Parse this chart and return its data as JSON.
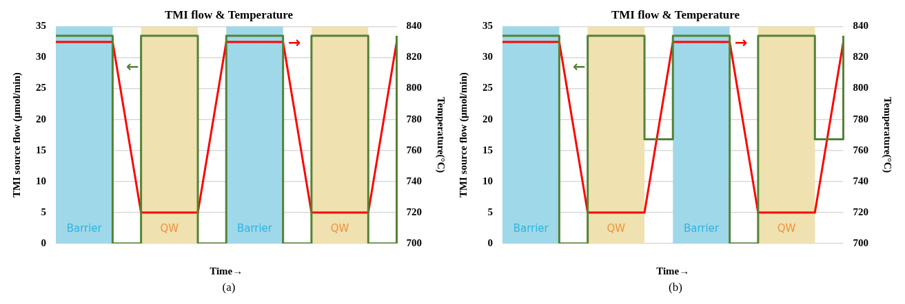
{
  "chart_data": [
    {
      "type": "line",
      "title": "TMI flow & Temperature",
      "xlabel": "Time→",
      "ylabel": "TMI source flow (μmol/min)",
      "y2label": "Temperature(°C)",
      "categories": [
        null,
        null,
        null,
        null,
        null,
        null,
        null,
        null,
        null,
        null,
        null,
        null,
        null
      ],
      "ylim": [
        0,
        35
      ],
      "yticks": [
        0,
        5,
        10,
        15,
        20,
        25,
        30,
        35
      ],
      "y2lim": [
        700,
        840
      ],
      "y2ticks": [
        700,
        720,
        740,
        760,
        780,
        800,
        820,
        840
      ],
      "grid": "y",
      "series": [
        {
          "type": "step",
          "color": "#548235",
          "values": [
            33.5,
            33.5,
            0,
            33.5,
            33.5,
            0,
            33.5,
            33.5,
            0,
            33.5,
            33.5,
            0,
            33.5
          ]
        },
        {
          "axis": "y2",
          "color": "#ff0000",
          "values": [
            830,
            830,
            830,
            720,
            720,
            720,
            830,
            830,
            830,
            720,
            720,
            720,
            830
          ]
        }
      ],
      "annotations": [
        "←",
        "→",
        "Barrier",
        "QW",
        "Barrier",
        "QW",
        "(a)"
      ]
    },
    {
      "type": "line",
      "title": "TMI flow & Temperature",
      "xlabel": "Time→",
      "ylabel": "TMI source flow (μmol/min)",
      "y2label": "Temperature(°C)",
      "categories": [
        null,
        null,
        null,
        null,
        null,
        null,
        null,
        null,
        null,
        null,
        null,
        null,
        null
      ],
      "ylim": [
        0,
        35
      ],
      "yticks": [
        0,
        5,
        10,
        15,
        20,
        25,
        30,
        35
      ],
      "y2lim": [
        700,
        840
      ],
      "y2ticks": [
        700,
        720,
        740,
        760,
        780,
        800,
        820,
        840
      ],
      "grid": "y",
      "series": [
        {
          "type": "step",
          "color": "#548235",
          "values": [
            33.5,
            33.5,
            0,
            33.5,
            33.5,
            16.8,
            33.5,
            33.5,
            0,
            33.5,
            33.5,
            16.8,
            33.5
          ]
        },
        {
          "axis": "y2",
          "color": "#ff0000",
          "values": [
            830,
            830,
            830,
            720,
            720,
            720,
            830,
            830,
            830,
            720,
            720,
            720,
            830
          ]
        }
      ],
      "annotations": [
        "←",
        "→",
        "Barrier",
        "QW",
        "Barrier",
        "QW",
        "(b)"
      ]
    }
  ]
}
